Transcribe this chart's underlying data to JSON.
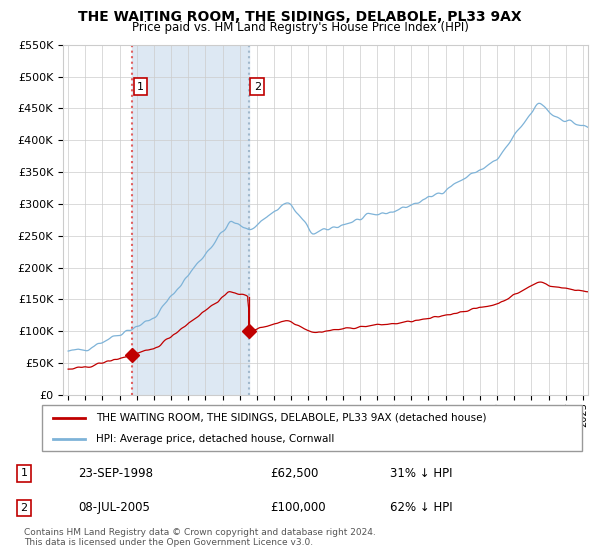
{
  "title": "THE WAITING ROOM, THE SIDINGS, DELABOLE, PL33 9AX",
  "subtitle": "Price paid vs. HM Land Registry's House Price Index (HPI)",
  "legend_line1": "THE WAITING ROOM, THE SIDINGS, DELABOLE, PL33 9AX (detached house)",
  "legend_line2": "HPI: Average price, detached house, Cornwall",
  "footer": "Contains HM Land Registry data © Crown copyright and database right 2024.\nThis data is licensed under the Open Government Licence v3.0.",
  "transaction1": {
    "label": "1",
    "date": "23-SEP-1998",
    "price": 62500,
    "hpi_note": "31% ↓ HPI"
  },
  "transaction2": {
    "label": "2",
    "date": "08-JUL-2005",
    "price": 100000,
    "hpi_note": "62% ↓ HPI"
  },
  "sale1_x": 1998.72,
  "sale1_y": 62500,
  "sale2_x": 2005.52,
  "sale2_y": 100000,
  "ylim": [
    0,
    550000
  ],
  "xlim_start": 1994.7,
  "xlim_end": 2025.3,
  "hpi_color": "#7eb3d8",
  "price_color": "#c00000",
  "vline1_color": "#e06060",
  "vline2_color": "#a0b8cc",
  "span_color": "#dde8f3",
  "plot_bg": "#ffffff",
  "grid_color": "#cccccc",
  "title_fontsize": 10,
  "subtitle_fontsize": 8.5
}
